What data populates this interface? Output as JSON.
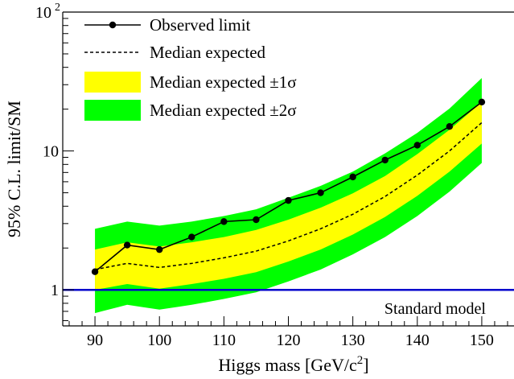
{
  "chart_data": {
    "type": "line",
    "title": "",
    "xlabel": "Higgs mass [GeV/c",
    "xlabel_sup": "2",
    "xlabel_end": "]",
    "ylabel": "95% C.L. limit/SM",
    "xlim": [
      85,
      155
    ],
    "ylim": [
      0.55,
      100
    ],
    "y_scale": "log",
    "x_ticks": [
      90,
      100,
      110,
      120,
      130,
      140,
      150
    ],
    "x_tick_labels": [
      "90",
      "100",
      "110",
      "120",
      "130",
      "140",
      "150"
    ],
    "y_tick_labels": [
      {
        "value": 1,
        "base": "1",
        "sup": ""
      },
      {
        "value": 10,
        "base": "10",
        "sup": ""
      },
      {
        "value": 100,
        "base": "10",
        "sup": "2"
      }
    ],
    "x": [
      90,
      95,
      100,
      105,
      110,
      115,
      120,
      125,
      130,
      135,
      140,
      145,
      150
    ],
    "series": [
      {
        "name": "Observed limit",
        "kind": "line-markers",
        "color": "#000000",
        "values": [
          1.35,
          2.1,
          1.95,
          2.4,
          3.1,
          3.2,
          4.4,
          5.0,
          6.5,
          8.6,
          11.0,
          15.0,
          22.5
        ]
      },
      {
        "name": "Median expected",
        "kind": "dashed",
        "color": "#000000",
        "values": [
          1.4,
          1.55,
          1.45,
          1.55,
          1.7,
          1.9,
          2.25,
          2.75,
          3.5,
          4.7,
          6.7,
          10.0,
          16.0
        ]
      },
      {
        "name": "Median expected  ±1σ",
        "kind": "band",
        "color": "#ffff00",
        "low": [
          1.0,
          1.1,
          1.02,
          1.1,
          1.2,
          1.34,
          1.6,
          1.95,
          2.5,
          3.35,
          4.75,
          7.1,
          11.3
        ],
        "high": [
          1.95,
          2.2,
          2.05,
          2.2,
          2.4,
          2.7,
          3.2,
          3.9,
          4.95,
          6.6,
          9.5,
          14.2,
          22.5
        ]
      },
      {
        "name": "Median expected  ±2σ",
        "kind": "band",
        "color": "#00ff00",
        "low": [
          0.68,
          0.78,
          0.72,
          0.78,
          0.86,
          0.96,
          1.15,
          1.4,
          1.8,
          2.4,
          3.4,
          5.1,
          8.2
        ],
        "high": [
          2.75,
          3.1,
          2.9,
          3.1,
          3.4,
          3.8,
          4.6,
          5.6,
          7.1,
          9.6,
          13.5,
          20.2,
          33.5
        ]
      }
    ],
    "reference_lines": [
      {
        "name": "Standard model",
        "y": 1,
        "color": "#0000cc"
      }
    ],
    "legend_position": "top-left",
    "grid": false
  }
}
